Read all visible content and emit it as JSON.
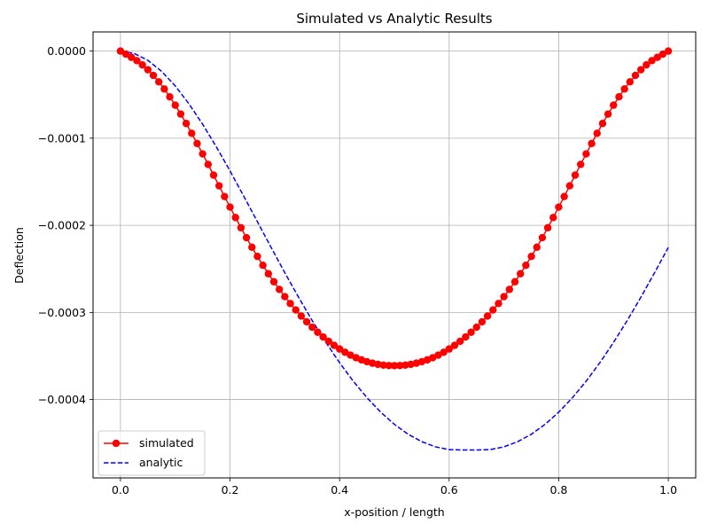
{
  "chart_data": {
    "type": "line",
    "title": "Simulated vs Analytic Results",
    "xlabel": "x-position / length",
    "ylabel": "Deflection",
    "xlim": [
      -0.05,
      1.05
    ],
    "ylim": [
      -0.00049,
      2.2e-05
    ],
    "xticks": [
      0.0,
      0.2,
      0.4,
      0.6,
      0.8,
      1.0
    ],
    "xtick_labels": [
      "0.0",
      "0.2",
      "0.4",
      "0.6",
      "0.8",
      "1.0"
    ],
    "yticks": [
      0.0,
      -0.0001,
      -0.0002,
      -0.0003,
      -0.0004
    ],
    "ytick_labels": [
      "0.0000",
      "−0.0001",
      "−0.0002",
      "−0.0003",
      "−0.0004"
    ],
    "grid": true,
    "legend_position": "lower-left",
    "series": [
      {
        "name": "simulated",
        "style": "solid line with circle markers",
        "color": "#ff0000",
        "x": [
          0.0,
          0.01,
          0.02,
          0.03,
          0.04,
          0.05,
          0.06,
          0.07,
          0.08,
          0.09,
          0.1,
          0.11,
          0.12,
          0.13,
          0.14,
          0.15,
          0.16,
          0.17,
          0.18,
          0.19,
          0.2,
          0.21,
          0.22,
          0.23,
          0.24,
          0.25,
          0.26,
          0.27,
          0.28,
          0.29,
          0.3,
          0.31,
          0.32,
          0.33,
          0.34,
          0.35,
          0.36,
          0.37,
          0.38,
          0.39,
          0.4,
          0.41,
          0.42,
          0.43,
          0.44,
          0.45,
          0.46,
          0.47,
          0.48,
          0.49,
          0.5,
          0.51,
          0.52,
          0.53,
          0.54,
          0.55,
          0.56,
          0.57,
          0.58,
          0.59,
          0.6,
          0.61,
          0.62,
          0.63,
          0.64,
          0.65,
          0.66,
          0.67,
          0.68,
          0.69,
          0.7,
          0.71,
          0.72,
          0.73,
          0.74,
          0.75,
          0.76,
          0.77,
          0.78,
          0.79,
          0.8,
          0.81,
          0.82,
          0.83,
          0.84,
          0.85,
          0.86,
          0.87,
          0.88,
          0.89,
          0.9,
          0.91,
          0.92,
          0.93,
          0.94,
          0.95,
          0.96,
          0.97,
          0.98,
          0.99,
          1.0
        ],
        "y": [
          0.0,
          -3.5e-06,
          -7.2e-06,
          -1.1e-05,
          -1.58e-05,
          -2.14e-05,
          -2.79e-05,
          -3.53e-05,
          -4.35e-05,
          -5.25e-05,
          -6.21e-05,
          -7.23e-05,
          -8.31e-05,
          -9.44e-05,
          -0.0001061,
          -0.000118,
          -0.0001301,
          -0.0001424,
          -0.0001547,
          -0.000167,
          -0.0001791,
          -0.0001911,
          -0.0002028,
          -0.0002142,
          -0.0002252,
          -0.0002357,
          -0.0002459,
          -0.0002556,
          -0.0002648,
          -0.0002736,
          -0.0002819,
          -0.0002898,
          -0.0002972,
          -0.0003042,
          -0.0003108,
          -0.000317,
          -0.0003228,
          -0.0003282,
          -0.0003332,
          -0.0003378,
          -0.000342,
          -0.0003458,
          -0.0003491,
          -0.000352,
          -0.0003545,
          -0.0003566,
          -0.0003583,
          -0.0003596,
          -0.0003605,
          -0.000361,
          -0.0003612,
          -0.000361,
          -0.0003605,
          -0.0003596,
          -0.0003583,
          -0.0003566,
          -0.0003545,
          -0.000352,
          -0.0003491,
          -0.0003458,
          -0.000342,
          -0.0003378,
          -0.0003332,
          -0.0003282,
          -0.0003228,
          -0.000317,
          -0.0003108,
          -0.0003042,
          -0.0002972,
          -0.0002898,
          -0.0002819,
          -0.0002736,
          -0.0002648,
          -0.0002556,
          -0.0002459,
          -0.0002357,
          -0.0002252,
          -0.0002142,
          -0.0002028,
          -0.0001911,
          -0.0001791,
          -0.000167,
          -0.0001547,
          -0.0001424,
          -0.0001301,
          -0.000118,
          -0.0001061,
          -9.44e-05,
          -8.31e-05,
          -7.23e-05,
          -6.21e-05,
          -5.25e-05,
          -4.35e-05,
          -3.53e-05,
          -2.79e-05,
          -2.14e-05,
          -1.58e-05,
          -1.1e-05,
          -7.2e-06,
          -3.5e-06,
          0.0
        ]
      },
      {
        "name": "analytic",
        "style": "dashed line",
        "color": "#0000ff",
        "x": [
          0.0,
          0.025,
          0.05,
          0.075,
          0.1,
          0.125,
          0.15,
          0.175,
          0.2,
          0.225,
          0.25,
          0.275,
          0.3,
          0.325,
          0.35,
          0.375,
          0.4,
          0.425,
          0.45,
          0.475,
          0.5,
          0.525,
          0.55,
          0.575,
          0.6,
          0.625,
          0.65,
          0.675,
          0.7,
          0.725,
          0.75,
          0.775,
          0.8,
          0.825,
          0.85,
          0.875,
          0.9,
          0.925,
          0.95,
          0.975,
          1.0
        ],
        "y": [
          0.0,
          -2.7e-06,
          -1.06e-05,
          -2.32e-05,
          -4e-05,
          -6.05e-05,
          -8.4e-05,
          -0.0001099,
          -0.0001376,
          -0.0001665,
          -0.0001959,
          -0.0002254,
          -0.0002544,
          -0.0002825,
          -0.0003093,
          -0.0003345,
          -0.0003578,
          -0.000379,
          -0.0003979,
          -0.0004145,
          -0.0004285,
          -0.0004398,
          -0.0004484,
          -0.0004543,
          -0.0004575,
          -0.000458,
          -0.000458,
          -0.0004575,
          -0.0004543,
          -0.0004484,
          -0.0004398,
          -0.0004285,
          -0.0004145,
          -0.0003979,
          -0.000379,
          -0.0003578,
          -0.0003345,
          -0.0003093,
          -0.0002825,
          -0.0002544,
          -0.0002254
        ]
      }
    ]
  }
}
